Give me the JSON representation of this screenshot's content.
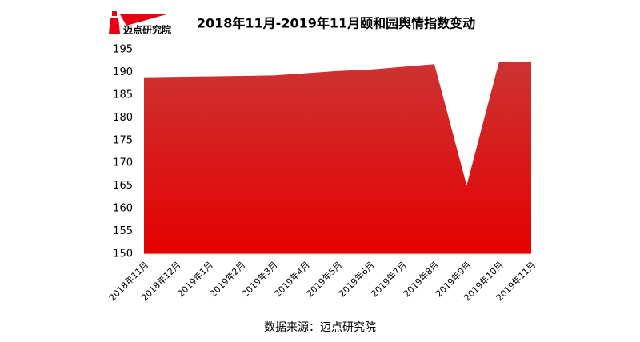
{
  "logo": "迈点研究院",
  "chart_data": {
    "type": "area",
    "title": "2018年11月-2019年11月颐和园舆情指数变动",
    "categories": [
      "2018年11月",
      "2018年12月",
      "2019年1月",
      "2019年2月",
      "2019年3月",
      "2019年4月",
      "2019年5月",
      "2019年6月",
      "2019年7月",
      "2019年8月",
      "2019年9月",
      "2019年10月",
      "2019年11月"
    ],
    "values": [
      188.9,
      189.0,
      189.1,
      189.2,
      189.3,
      189.8,
      190.3,
      190.6,
      191.2,
      191.8,
      165.1,
      192.2,
      192.4
    ],
    "color": "#cc3333",
    "color_bottom": "#e60000",
    "ylim": [
      150,
      195
    ],
    "yticks": [
      150,
      155,
      160,
      165,
      170,
      175,
      180,
      185,
      190,
      195
    ],
    "source": "数据来源：迈点研究院"
  }
}
